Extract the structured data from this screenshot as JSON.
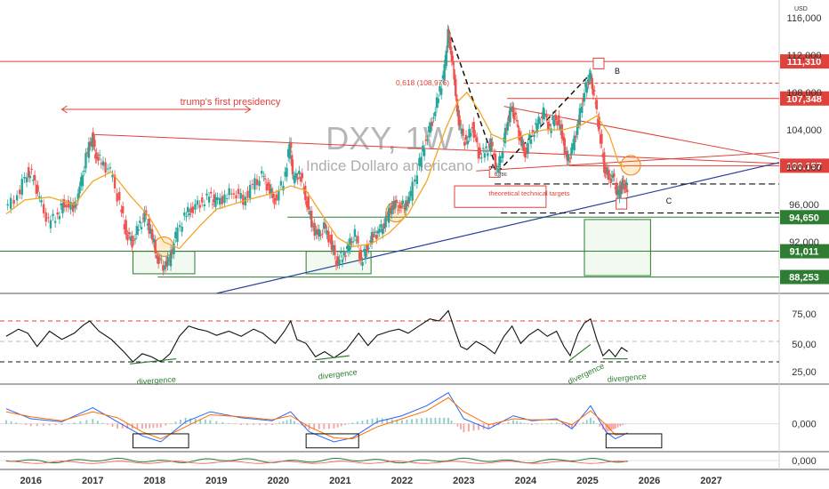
{
  "chart_data": {
    "type": "line",
    "title": "DXY, 1W",
    "subtitle": "Indice Dollaro americano",
    "currency": "USD",
    "x_ticks": [
      "2016",
      "2017",
      "2018",
      "2019",
      "2020",
      "2021",
      "2022",
      "2023",
      "2024",
      "2025",
      "2026",
      "2027"
    ],
    "y_ticks": [
      {
        "v": 116,
        "label": "116,000"
      },
      {
        "v": 112,
        "label": "112,000"
      },
      {
        "v": 108,
        "label": "108,000"
      },
      {
        "v": 104,
        "label": "104,000"
      },
      {
        "v": 100,
        "label": "100,000"
      },
      {
        "v": 96,
        "label": "96,000"
      },
      {
        "v": 92,
        "label": "92,000"
      }
    ],
    "ylim": [
      86.5,
      117.5
    ],
    "xlim": [
      2015.5,
      2028.1
    ],
    "price_series": [
      [
        2015.6,
        95.5
      ],
      [
        2015.8,
        97
      ],
      [
        2015.95,
        99.5
      ],
      [
        2016.05,
        99
      ],
      [
        2016.15,
        96.5
      ],
      [
        2016.3,
        94
      ],
      [
        2016.45,
        95
      ],
      [
        2016.55,
        96.3
      ],
      [
        2016.7,
        95.5
      ],
      [
        2016.8,
        97.5
      ],
      [
        2016.9,
        101
      ],
      [
        2017.0,
        103.3
      ],
      [
        2017.05,
        101.5
      ],
      [
        2017.15,
        100.5
      ],
      [
        2017.3,
        99.5
      ],
      [
        2017.45,
        96
      ],
      [
        2017.55,
        93
      ],
      [
        2017.65,
        92
      ],
      [
        2017.75,
        93.5
      ],
      [
        2017.85,
        94.8
      ],
      [
        2017.95,
        93
      ],
      [
        2018.05,
        90.5
      ],
      [
        2018.15,
        89.5
      ],
      [
        2018.25,
        90
      ],
      [
        2018.35,
        92.5
      ],
      [
        2018.5,
        94.8
      ],
      [
        2018.6,
        95.5
      ],
      [
        2018.75,
        96.2
      ],
      [
        2018.9,
        96.8
      ],
      [
        2019.0,
        96.2
      ],
      [
        2019.15,
        96.8
      ],
      [
        2019.3,
        97.5
      ],
      [
        2019.45,
        96.5
      ],
      [
        2019.6,
        98
      ],
      [
        2019.75,
        99
      ],
      [
        2019.85,
        97.8
      ],
      [
        2019.95,
        96.5
      ],
      [
        2020.1,
        98.5
      ],
      [
        2020.2,
        102.5
      ],
      [
        2020.25,
        98.5
      ],
      [
        2020.35,
        99.5
      ],
      [
        2020.45,
        97
      ],
      [
        2020.55,
        94
      ],
      [
        2020.65,
        92.5
      ],
      [
        2020.75,
        93.5
      ],
      [
        2020.85,
        92.2
      ],
      [
        2020.95,
        90
      ],
      [
        2021.05,
        90.5
      ],
      [
        2021.15,
        91.5
      ],
      [
        2021.25,
        92.8
      ],
      [
        2021.35,
        90
      ],
      [
        2021.45,
        91.5
      ],
      [
        2021.55,
        92.8
      ],
      [
        2021.65,
        93
      ],
      [
        2021.75,
        94.2
      ],
      [
        2021.85,
        96
      ],
      [
        2021.95,
        96
      ],
      [
        2022.05,
        95.8
      ],
      [
        2022.15,
        97
      ],
      [
        2022.3,
        100.5
      ],
      [
        2022.4,
        103
      ],
      [
        2022.5,
        105
      ],
      [
        2022.6,
        107.5
      ],
      [
        2022.7,
        110.5
      ],
      [
        2022.75,
        114.3
      ],
      [
        2022.8,
        112.5
      ],
      [
        2022.85,
        110
      ],
      [
        2022.9,
        106
      ],
      [
        2022.95,
        104
      ],
      [
        2023.05,
        102.5
      ],
      [
        2023.15,
        104.5
      ],
      [
        2023.25,
        101.5
      ],
      [
        2023.35,
        101.5
      ],
      [
        2023.45,
        102.5
      ],
      [
        2023.55,
        99.6
      ],
      [
        2023.62,
        101.5
      ],
      [
        2023.7,
        104.5
      ],
      [
        2023.78,
        106.3
      ],
      [
        2023.85,
        105
      ],
      [
        2023.92,
        103
      ],
      [
        2024.0,
        101.5
      ],
      [
        2024.1,
        103.5
      ],
      [
        2024.2,
        104.5
      ],
      [
        2024.3,
        105.8
      ],
      [
        2024.4,
        104.2
      ],
      [
        2024.5,
        105.5
      ],
      [
        2024.6,
        103.5
      ],
      [
        2024.68,
        100.5
      ],
      [
        2024.75,
        101.5
      ],
      [
        2024.85,
        104.5
      ],
      [
        2024.92,
        107
      ],
      [
        2025.0,
        109
      ],
      [
        2025.05,
        109.8
      ],
      [
        2025.12,
        107.5
      ],
      [
        2025.2,
        104
      ],
      [
        2025.28,
        100
      ],
      [
        2025.35,
        99
      ],
      [
        2025.42,
        98.8
      ],
      [
        2025.5,
        97
      ],
      [
        2025.55,
        98
      ],
      [
        2025.6,
        98.3
      ],
      [
        2025.65,
        97.6
      ]
    ],
    "ma_series": [
      [
        2015.6,
        95
      ],
      [
        2015.9,
        96.5
      ],
      [
        2016.3,
        96.8
      ],
      [
        2016.7,
        96
      ],
      [
        2017.0,
        98.5
      ],
      [
        2017.3,
        99.5
      ],
      [
        2017.6,
        97
      ],
      [
        2017.9,
        94.8
      ],
      [
        2018.15,
        92
      ],
      [
        2018.4,
        91.3
      ],
      [
        2018.7,
        93.5
      ],
      [
        2019.0,
        95.5
      ],
      [
        2019.5,
        96.5
      ],
      [
        2019.9,
        97.2
      ],
      [
        2020.2,
        98
      ],
      [
        2020.45,
        97.5
      ],
      [
        2020.7,
        95
      ],
      [
        2020.95,
        92.5
      ],
      [
        2021.2,
        91.5
      ],
      [
        2021.5,
        91.8
      ],
      [
        2021.8,
        93
      ],
      [
        2022.1,
        95
      ],
      [
        2022.4,
        98.5
      ],
      [
        2022.7,
        104
      ],
      [
        2022.9,
        107
      ],
      [
        2023.05,
        108
      ],
      [
        2023.25,
        106
      ],
      [
        2023.45,
        103.5
      ],
      [
        2023.7,
        102.8
      ],
      [
        2024.0,
        103.5
      ],
      [
        2024.3,
        104
      ],
      [
        2024.6,
        104
      ],
      [
        2024.9,
        104.5
      ],
      [
        2025.15,
        105.5
      ],
      [
        2025.35,
        103.5
      ],
      [
        2025.5,
        100.5
      ],
      [
        2025.6,
        100
      ]
    ],
    "horizontal_levels": [
      {
        "label": "111,310",
        "value": 111.31,
        "color": "#e0413a"
      },
      {
        "label": "107,348",
        "value": 107.348,
        "color": "#e0413a"
      },
      {
        "label": "100,157",
        "value": 100.157,
        "color": "#e0413a"
      },
      {
        "label": "94,650",
        "value": 94.65,
        "color": "#2e7d32"
      },
      {
        "label": "91,011",
        "value": 91.011,
        "color": "#2e7d32"
      },
      {
        "label": "88,253",
        "value": 88.253,
        "color": "#2e7d32"
      }
    ],
    "annotations": [
      {
        "text": "trump's first presidency",
        "color": "#e0413a"
      },
      {
        "text": "0,618 (108,976)",
        "color": "#e0413a"
      },
      {
        "text": "theoretical technical targets",
        "color": "#e0413a"
      },
      {
        "text": "0,786",
        "color": "#333333"
      },
      {
        "text": "A",
        "color": "#111111"
      },
      {
        "text": "B",
        "color": "#111111"
      },
      {
        "text": "C",
        "color": "#111111"
      }
    ],
    "rsi": {
      "ticks": [
        {
          "v": 75,
          "label": "75,00"
        },
        {
          "v": 50,
          "label": "50,00"
        },
        {
          "v": 25,
          "label": "25,00"
        }
      ],
      "divergence_labels": [
        "divergence",
        "divergence",
        "divergence",
        "divergence"
      ],
      "values": [
        [
          2015.6,
          55
        ],
        [
          2015.8,
          62
        ],
        [
          2015.95,
          58
        ],
        [
          2016.1,
          45
        ],
        [
          2016.3,
          60
        ],
        [
          2016.5,
          52
        ],
        [
          2016.7,
          58
        ],
        [
          2016.85,
          66
        ],
        [
          2016.95,
          70
        ],
        [
          2017.1,
          60
        ],
        [
          2017.3,
          52
        ],
        [
          2017.5,
          40
        ],
        [
          2017.65,
          30
        ],
        [
          2017.8,
          38
        ],
        [
          2017.95,
          35
        ],
        [
          2018.1,
          30
        ],
        [
          2018.25,
          38
        ],
        [
          2018.4,
          55
        ],
        [
          2018.55,
          65
        ],
        [
          2018.7,
          62
        ],
        [
          2018.85,
          60
        ],
        [
          2019.0,
          56
        ],
        [
          2019.2,
          60
        ],
        [
          2019.4,
          55
        ],
        [
          2019.6,
          62
        ],
        [
          2019.75,
          58
        ],
        [
          2019.95,
          48
        ],
        [
          2020.1,
          60
        ],
        [
          2020.2,
          70
        ],
        [
          2020.3,
          52
        ],
        [
          2020.45,
          48
        ],
        [
          2020.6,
          35
        ],
        [
          2020.75,
          40
        ],
        [
          2020.9,
          34
        ],
        [
          2021.1,
          42
        ],
        [
          2021.3,
          58
        ],
        [
          2021.45,
          46
        ],
        [
          2021.6,
          56
        ],
        [
          2021.8,
          60
        ],
        [
          2021.95,
          62
        ],
        [
          2022.1,
          58
        ],
        [
          2022.3,
          66
        ],
        [
          2022.45,
          72
        ],
        [
          2022.6,
          70
        ],
        [
          2022.75,
          80
        ],
        [
          2022.85,
          62
        ],
        [
          2022.95,
          45
        ],
        [
          2023.05,
          42
        ],
        [
          2023.2,
          50
        ],
        [
          2023.35,
          45
        ],
        [
          2023.5,
          38
        ],
        [
          2023.65,
          55
        ],
        [
          2023.78,
          65
        ],
        [
          2023.92,
          48
        ],
        [
          2024.05,
          56
        ],
        [
          2024.2,
          62
        ],
        [
          2024.35,
          55
        ],
        [
          2024.5,
          60
        ],
        [
          2024.62,
          45
        ],
        [
          2024.72,
          36
        ],
        [
          2024.85,
          58
        ],
        [
          2024.95,
          68
        ],
        [
          2025.05,
          72
        ],
        [
          2025.15,
          52
        ],
        [
          2025.25,
          36
        ],
        [
          2025.35,
          42
        ],
        [
          2025.45,
          35
        ],
        [
          2025.55,
          44
        ],
        [
          2025.65,
          40
        ]
      ]
    },
    "macd": {
      "ticks": [
        {
          "v": 0,
          "label": "0,000"
        }
      ],
      "macd_line": [
        [
          2015.6,
          1.5
        ],
        [
          2016.0,
          0.5
        ],
        [
          2016.5,
          0.2
        ],
        [
          2017.0,
          1.6
        ],
        [
          2017.4,
          0.2
        ],
        [
          2017.8,
          -1.2
        ],
        [
          2018.1,
          -1.8
        ],
        [
          2018.5,
          0.2
        ],
        [
          2018.9,
          1.2
        ],
        [
          2019.4,
          0.6
        ],
        [
          2019.9,
          0.3
        ],
        [
          2020.2,
          1.2
        ],
        [
          2020.5,
          -0.8
        ],
        [
          2020.9,
          -1.8
        ],
        [
          2021.2,
          -1.4
        ],
        [
          2021.6,
          0.2
        ],
        [
          2022.0,
          0.8
        ],
        [
          2022.4,
          1.8
        ],
        [
          2022.75,
          3.1
        ],
        [
          2023.0,
          0.5
        ],
        [
          2023.4,
          -0.5
        ],
        [
          2023.8,
          0.8
        ],
        [
          2024.1,
          0.3
        ],
        [
          2024.5,
          0.5
        ],
        [
          2024.75,
          -0.5
        ],
        [
          2025.05,
          1.8
        ],
        [
          2025.3,
          -0.8
        ],
        [
          2025.45,
          -1.5
        ],
        [
          2025.65,
          -0.9
        ]
      ],
      "signal_line": [
        [
          2015.6,
          1.2
        ],
        [
          2016.0,
          0.7
        ],
        [
          2016.5,
          0.3
        ],
        [
          2017.0,
          1.2
        ],
        [
          2017.4,
          0.6
        ],
        [
          2017.8,
          -0.8
        ],
        [
          2018.1,
          -1.5
        ],
        [
          2018.5,
          -0.3
        ],
        [
          2018.9,
          0.9
        ],
        [
          2019.4,
          0.7
        ],
        [
          2019.9,
          0.4
        ],
        [
          2020.2,
          0.8
        ],
        [
          2020.5,
          -0.3
        ],
        [
          2020.9,
          -1.4
        ],
        [
          2021.2,
          -1.5
        ],
        [
          2021.6,
          -0.3
        ],
        [
          2022.0,
          0.5
        ],
        [
          2022.4,
          1.3
        ],
        [
          2022.75,
          2.6
        ],
        [
          2023.0,
          1.2
        ],
        [
          2023.4,
          -0.1
        ],
        [
          2023.8,
          0.5
        ],
        [
          2024.1,
          0.4
        ],
        [
          2024.5,
          0.4
        ],
        [
          2024.75,
          -0.1
        ],
        [
          2025.05,
          1.3
        ],
        [
          2025.3,
          -0.1
        ],
        [
          2025.45,
          -1.1
        ],
        [
          2025.65,
          -1.0
        ]
      ]
    },
    "bottom": {
      "ticks": [
        {
          "v": 0,
          "label": "0,000"
        }
      ]
    }
  }
}
